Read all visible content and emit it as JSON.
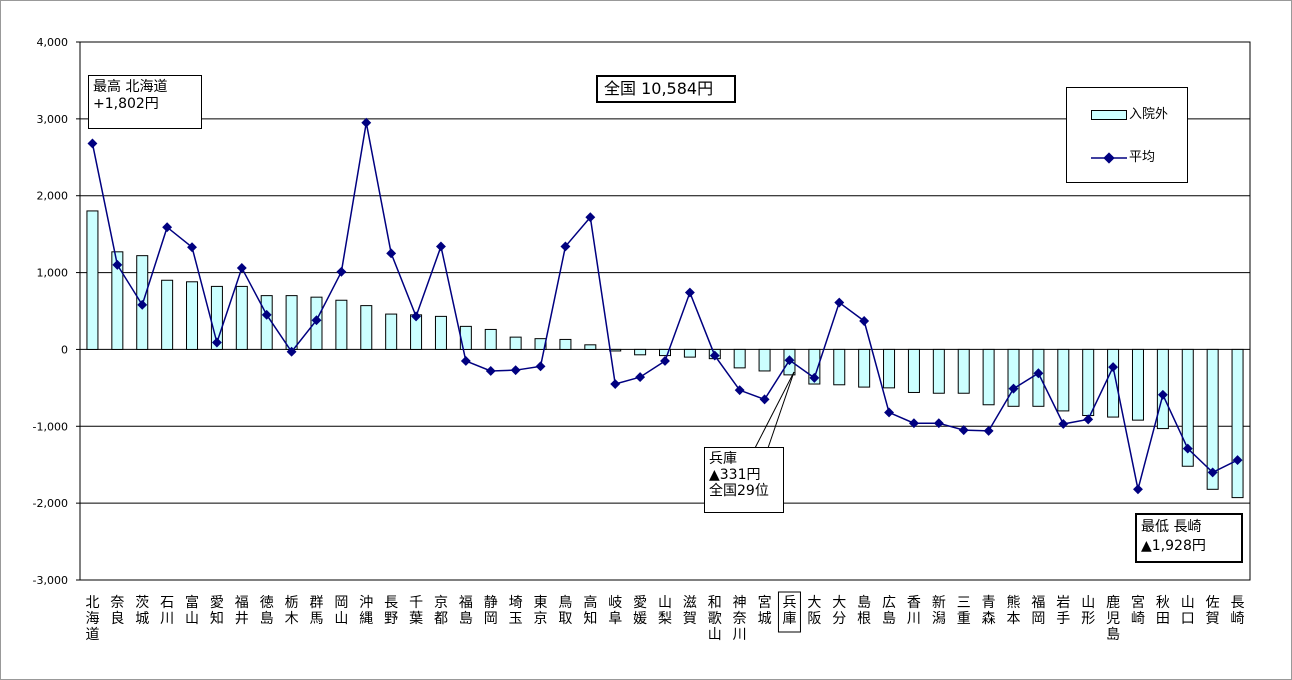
{
  "chart_data": {
    "type": "bar",
    "title": "全国 10,584円",
    "categories": [
      "北海道",
      "奈良",
      "茨城",
      "石川",
      "富山",
      "愛知",
      "福井",
      "徳島",
      "栃木",
      "群馬",
      "岡山",
      "沖縄",
      "長野",
      "千葉",
      "京都",
      "福島",
      "静岡",
      "埼玉",
      "東京",
      "鳥取",
      "高知",
      "岐阜",
      "愛媛",
      "山梨",
      "滋賀",
      "和歌山",
      "神奈川",
      "宮城",
      "兵庫",
      "大阪",
      "大分",
      "島根",
      "広島",
      "香川",
      "新潟",
      "三重",
      "青森",
      "熊本",
      "福岡",
      "岩手",
      "山形",
      "鹿児島",
      "宮崎",
      "秋田",
      "山口",
      "佐賀",
      "長崎"
    ],
    "series": [
      {
        "name": "入院外",
        "type": "bar",
        "values": [
          1802,
          1270,
          1220,
          900,
          880,
          820,
          820,
          700,
          700,
          680,
          640,
          570,
          460,
          450,
          430,
          300,
          260,
          160,
          140,
          130,
          60,
          -20,
          -70,
          -80,
          -100,
          -120,
          -240,
          -280,
          -331,
          -450,
          -460,
          -490,
          -500,
          -560,
          -570,
          -570,
          -720,
          -740,
          -740,
          -800,
          -860,
          -880,
          -920,
          -1030,
          -1520,
          -1820,
          -1928
        ]
      },
      {
        "name": "平均",
        "type": "line",
        "values": [
          2680,
          1100,
          580,
          1590,
          1330,
          90,
          1060,
          450,
          -30,
          380,
          1010,
          2950,
          1250,
          430,
          1340,
          -150,
          -280,
          -270,
          -220,
          1340,
          1720,
          -450,
          -360,
          -150,
          740,
          -80,
          -530,
          -650,
          -140,
          -370,
          610,
          370,
          -820,
          -960,
          -960,
          -1050,
          -1060,
          -510,
          -310,
          -970,
          -910,
          -230,
          -1820,
          -590,
          -1290,
          -1600,
          -1440
        ]
      }
    ],
    "ylim": [
      -3000,
      4000
    ],
    "yticks": [
      4000,
      3000,
      2000,
      1000,
      0,
      -1000,
      -2000,
      -3000
    ],
    "ytick_labels": [
      "4,000",
      "3,000",
      "2,000",
      "1,000",
      "0",
      "-1,000",
      "-2,000",
      "-3,000"
    ],
    "grid": true,
    "legend_position": "top-right",
    "highlight_category": "兵庫",
    "colors": {
      "bar_fill": "#ccffff",
      "bar_stroke": "#000000",
      "line": "#000080",
      "grid": "#000000"
    }
  },
  "annotations": {
    "max_title": "最高  北海道",
    "max_value": "+1,802円",
    "hyogo_name": "兵庫",
    "hyogo_value": "▲331円",
    "hyogo_rank": "全国29位",
    "min_title": "最低 長崎",
    "min_value": "▲1,928円"
  }
}
